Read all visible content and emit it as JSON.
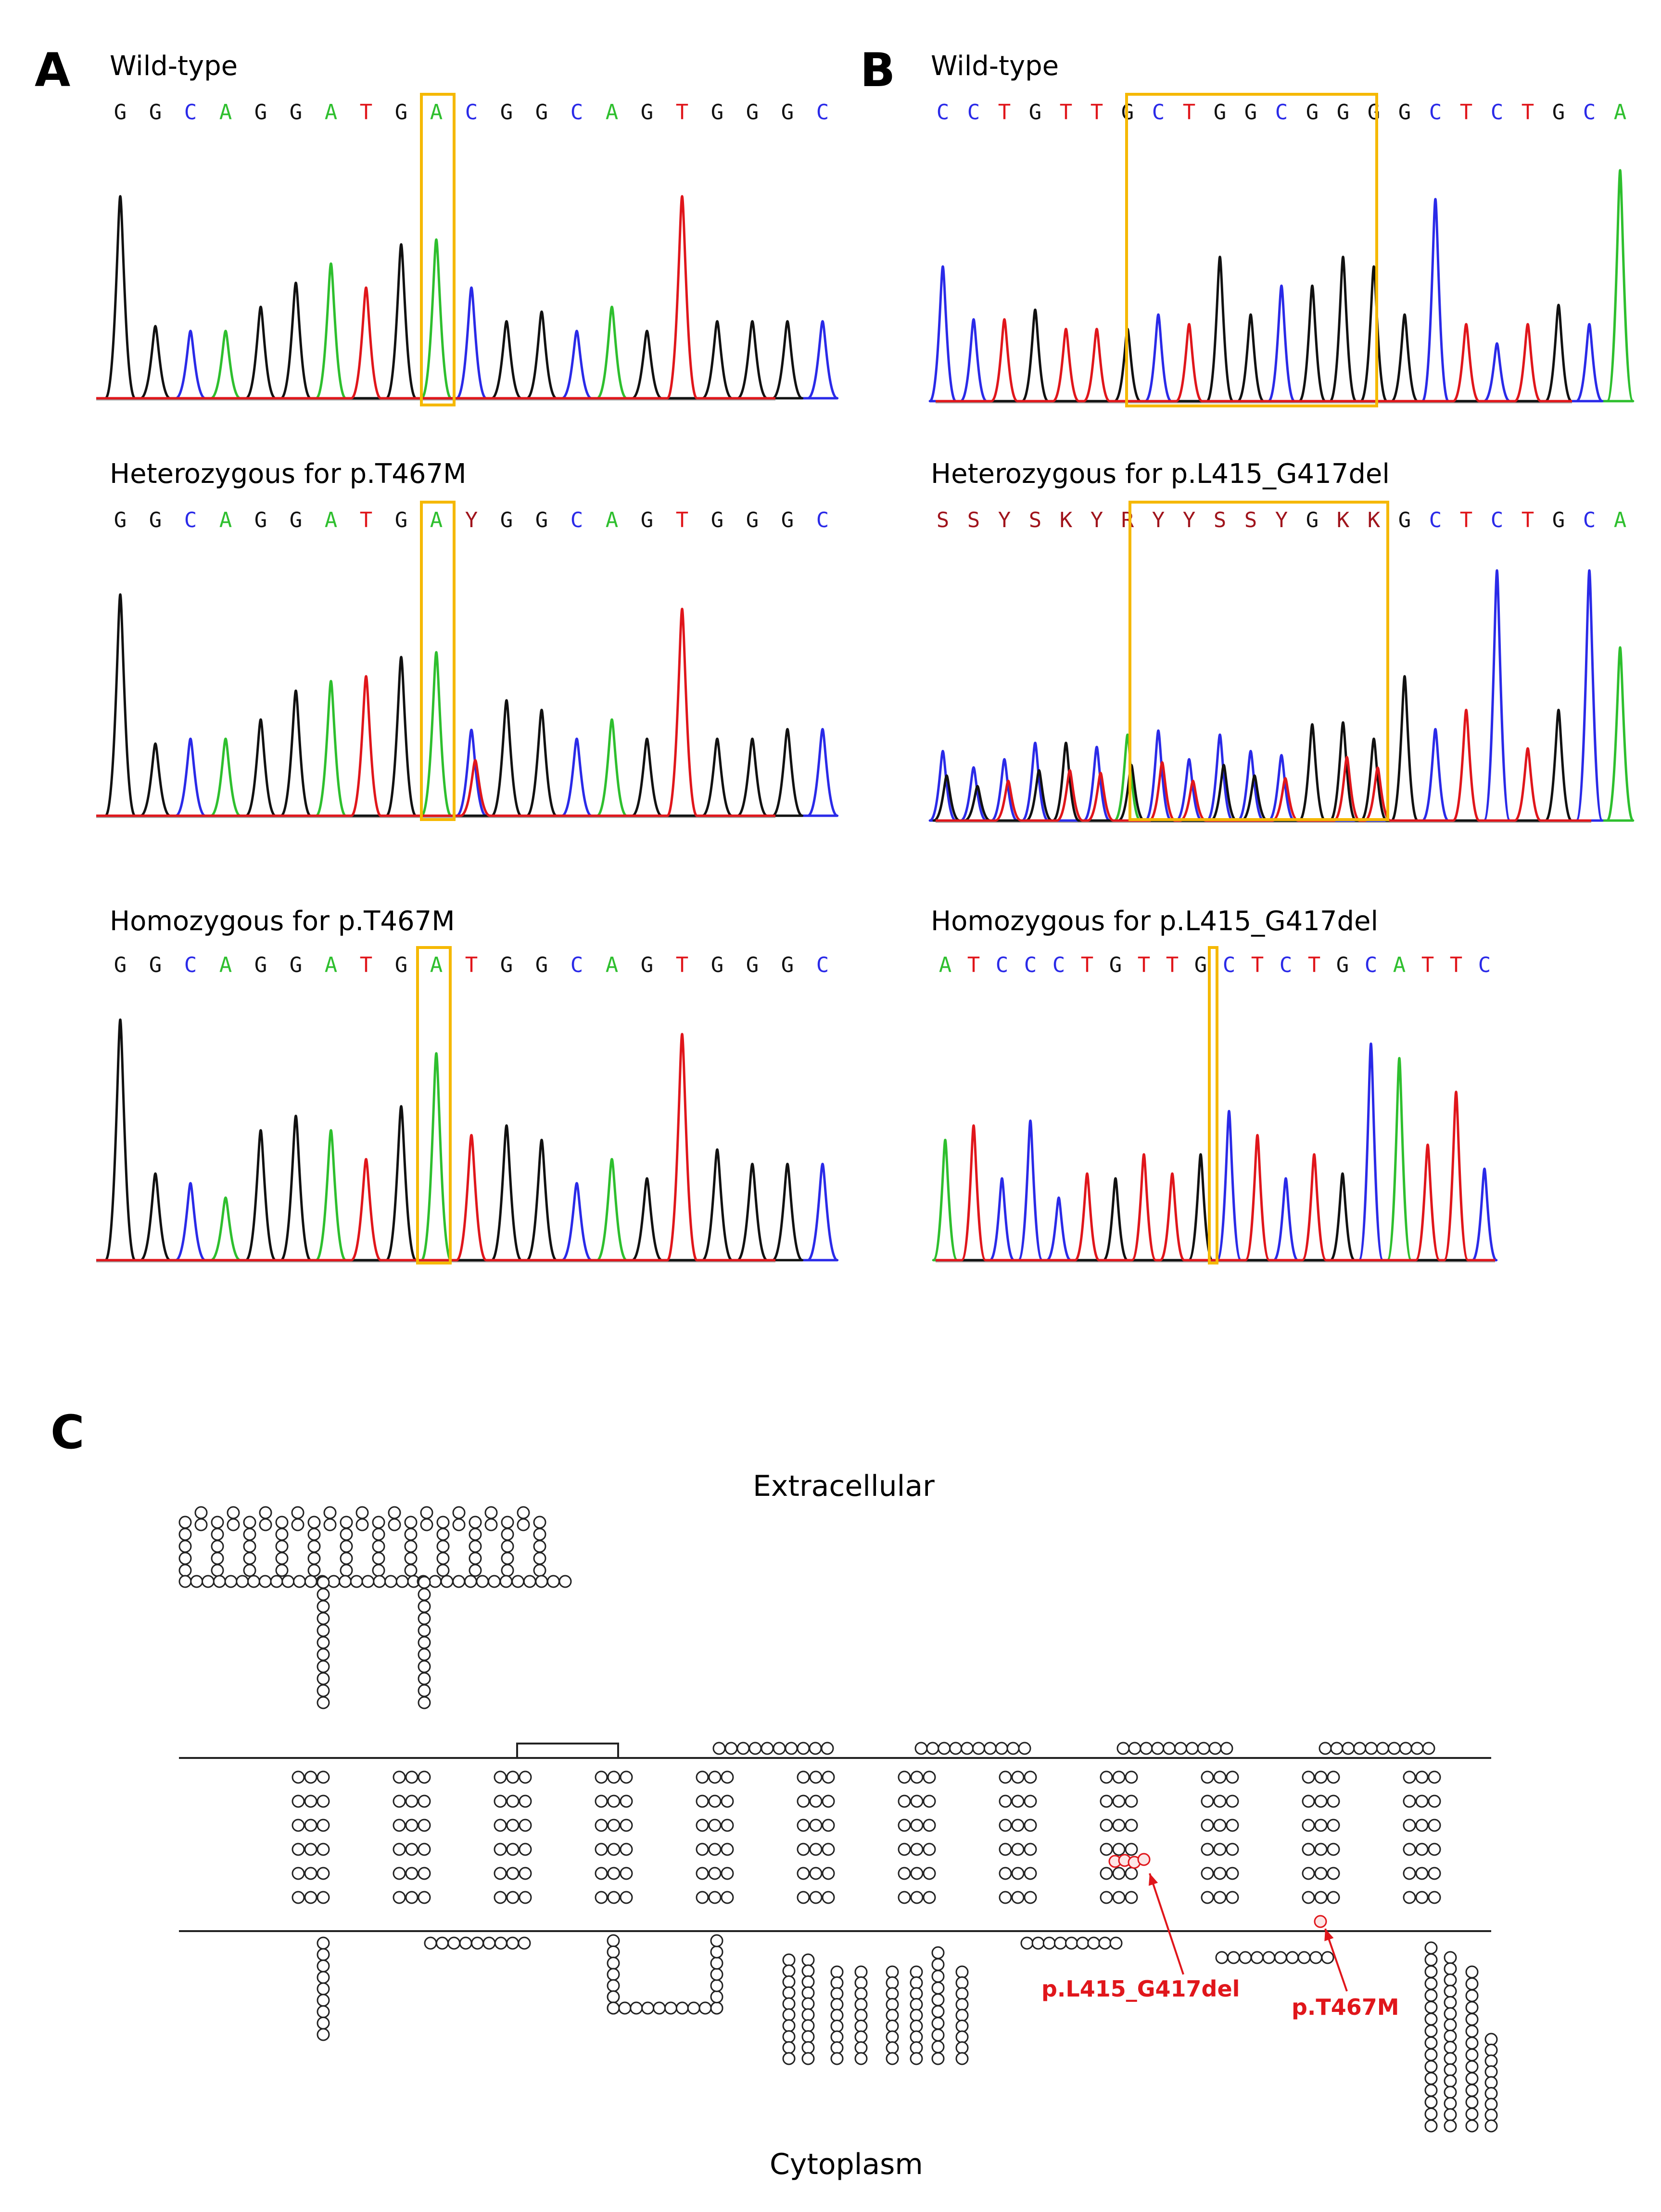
{
  "panels": {
    "A": {
      "letter": "A",
      "traces": [
        {
          "title": "Wild-type",
          "sequence": "GGCAGGATGACGGCAGTGGGC"
        },
        {
          "title": "Heterozygous for p.T467M",
          "sequence": "GGCAGGATGAYGGCAGTGGGC"
        },
        {
          "title": "Homozygous for p.T467M",
          "sequence": "GGCAGGATGATGGCAGTGGGC"
        }
      ]
    },
    "B": {
      "letter": "B",
      "traces": [
        {
          "title": "Wild-type",
          "sequence": "CCTGTTGCTGGCGGGGCTCTGCA"
        },
        {
          "title": "Heterozygous for p.L415_G417del",
          "sequence": "SSYSKYRYYSSYGKKGCTCTGCA"
        },
        {
          "title": "Homozygous for p.L415_G417del",
          "sequence": "ATCCCTGTTGCTCTGCATTC"
        }
      ]
    },
    "C": {
      "letter": "C",
      "extracellular_label": "Extracellular",
      "cytoplasm_label": "Cytoplasm",
      "mutation_labels": [
        "p.L415_G417del",
        "p.T467M"
      ]
    }
  },
  "colors": {
    "A": "#2ebf2e",
    "C": "#2a2ae8",
    "G": "#111111",
    "T": "#e0161b",
    "ambiguous": "#a0141c",
    "highlight": "#f5b800",
    "mutation": "#e0161b"
  }
}
